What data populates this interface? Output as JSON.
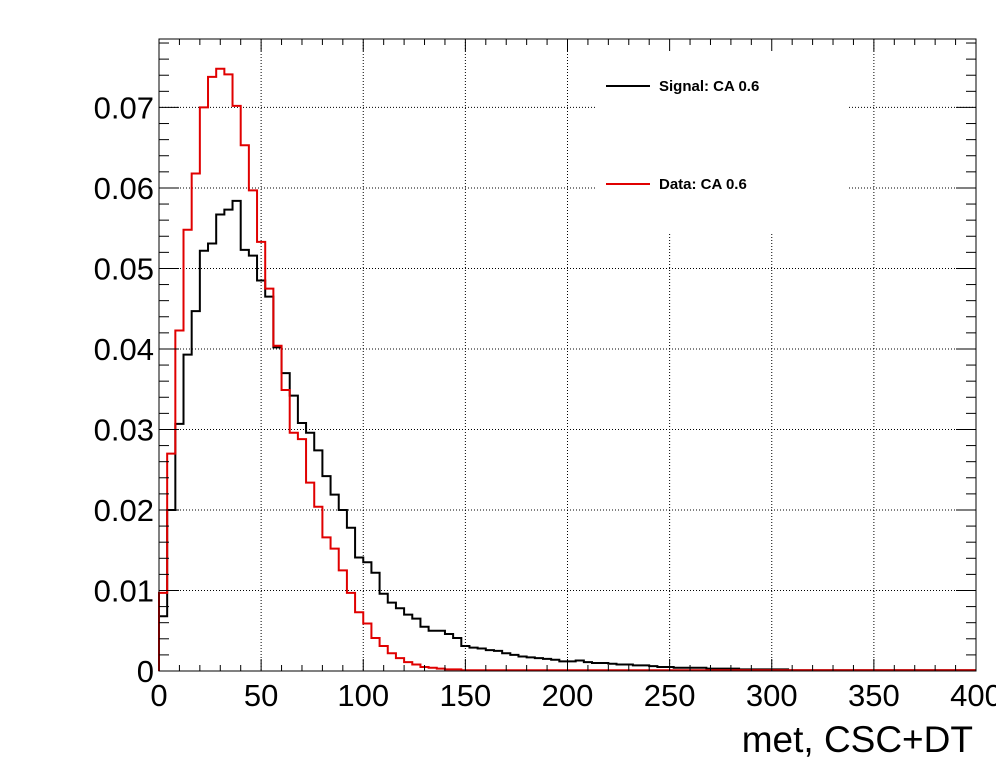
{
  "chart_data": {
    "type": "line",
    "style": "step-histogram",
    "xlabel": "met, CSC+DT",
    "ylabel": "",
    "xlim": [
      0,
      400
    ],
    "ylim": [
      0,
      0.0785
    ],
    "grid": true,
    "legend_position": "top-right",
    "bin_width": 4,
    "x_ticks": [
      0,
      50,
      100,
      150,
      200,
      250,
      300,
      350,
      400
    ],
    "x_tick_labels": [
      "0",
      "50",
      "100",
      "150",
      "200",
      "250",
      "300",
      "350",
      "400"
    ],
    "y_ticks": [
      0,
      0.01,
      0.02,
      0.03,
      0.04,
      0.05,
      0.06,
      0.07
    ],
    "y_tick_labels": [
      "0",
      "0.01",
      "0.02",
      "0.03",
      "0.04",
      "0.05",
      "0.06",
      "0.07"
    ],
    "series": [
      {
        "name": "Signal: CA 0.6",
        "color": "#000000",
        "values": [
          0.0068,
          0.02,
          0.0307,
          0.0393,
          0.0447,
          0.0522,
          0.0531,
          0.0567,
          0.0573,
          0.0584,
          0.0523,
          0.0516,
          0.0485,
          0.0465,
          0.0402,
          0.037,
          0.0342,
          0.0308,
          0.0296,
          0.0274,
          0.0242,
          0.0219,
          0.02,
          0.0178,
          0.0141,
          0.0135,
          0.0122,
          0.0096,
          0.0085,
          0.0078,
          0.007,
          0.0065,
          0.0055,
          0.005,
          0.005,
          0.0046,
          0.0041,
          0.0031,
          0.0029,
          0.0028,
          0.0026,
          0.0025,
          0.0022,
          0.002,
          0.0018,
          0.0017,
          0.0016,
          0.0015,
          0.0014,
          0.0012,
          0.0012,
          0.0013,
          0.0011,
          0.001,
          0.001,
          0.0009,
          0.0008,
          0.0008,
          0.0007,
          0.0007,
          0.0006,
          0.0005,
          0.0005,
          0.0004,
          0.0004,
          0.0004,
          0.0004,
          0.0003,
          0.0003,
          0.0003,
          0.0003,
          0.0002,
          0.0002,
          0.0002,
          0.0002,
          0.0002,
          0.0002,
          0.0001,
          0.0001,
          0.0001,
          0.0001,
          0.0001,
          0.0001,
          0.0001,
          0.0001,
          0.0001,
          0.0001,
          0.0001,
          0.0001,
          0.0001,
          0.0001,
          0.0001,
          0.0001,
          0.0001,
          0.0001,
          0.0001,
          0.0001,
          0.0001,
          0.0001,
          0.0001
        ]
      },
      {
        "name": "Data: CA 0.6",
        "color": "#e00000",
        "values": [
          0.0097,
          0.027,
          0.0423,
          0.0548,
          0.0618,
          0.07,
          0.0738,
          0.0748,
          0.0741,
          0.0702,
          0.0653,
          0.0597,
          0.0533,
          0.0475,
          0.0404,
          0.0349,
          0.0296,
          0.0288,
          0.0234,
          0.0204,
          0.0166,
          0.0152,
          0.0125,
          0.0097,
          0.0073,
          0.0059,
          0.0041,
          0.0031,
          0.0022,
          0.0016,
          0.0011,
          0.0008,
          0.0005,
          0.0004,
          0.0003,
          0.0002,
          0.0002,
          0.0001,
          0.0001,
          0.0001,
          0.0001,
          0.0001,
          0.0001,
          0.0001,
          0.0001,
          0.0001,
          0.0001,
          0.0001,
          0.0001,
          0.0001,
          0.0001,
          0.0001,
          0.0001,
          0.0001,
          0.0001,
          0.0001,
          0.0001,
          0.0001,
          0.0001,
          0.0001,
          0.0001,
          0.0001,
          0.0001,
          0.0001,
          0.0001,
          0.0001,
          0.0001,
          0.0001,
          0.0001,
          0.0001,
          0.0001,
          0.0001,
          0.0001,
          0.0001,
          0.0001,
          0.0001,
          0.0001,
          0.0001,
          0.0001,
          0.0001,
          0.0001,
          0.0001,
          0.0001,
          0.0001,
          0.0001,
          0.0001,
          0.0001,
          0.0001,
          0.0001,
          0.0001,
          0.0001,
          0.0001,
          0.0001,
          0.0001,
          0.0001,
          0.0001,
          0.0001,
          0.0001,
          0.0001,
          0.0001
        ]
      }
    ]
  }
}
